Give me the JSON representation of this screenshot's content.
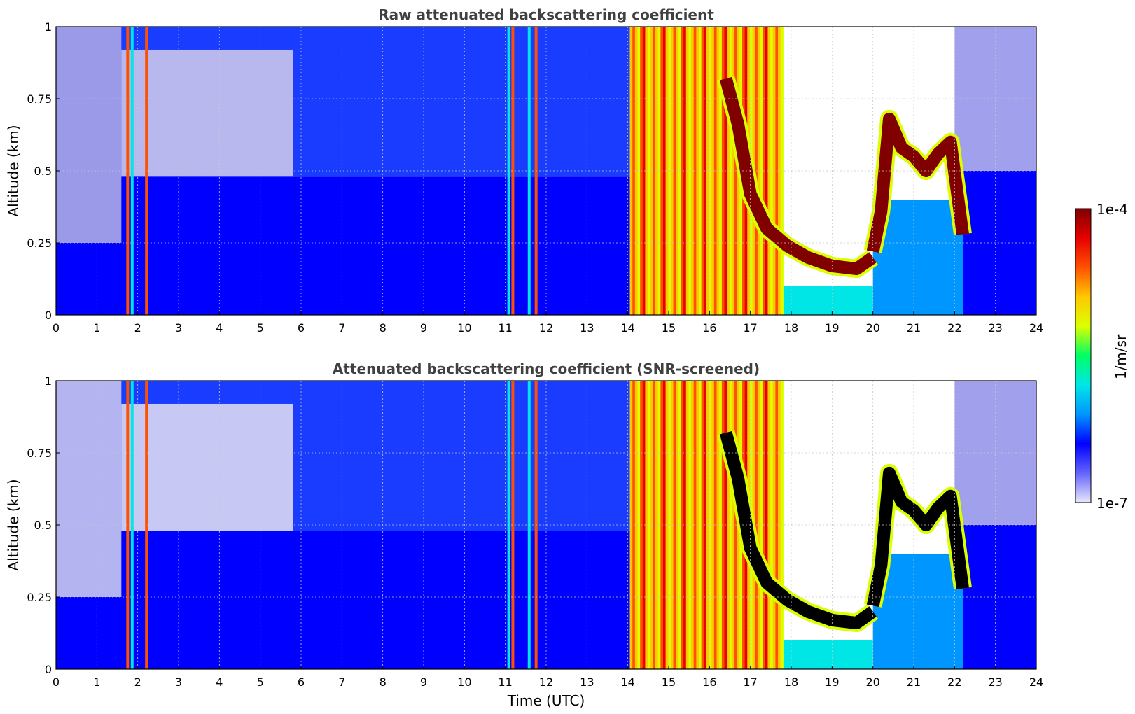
{
  "chart_data": [
    {
      "type": "heatmap",
      "title": "Raw attenuated backscattering coefficient",
      "xlabel": "",
      "ylabel": "Altitude (km)",
      "xlim": [
        0,
        24
      ],
      "ylim": [
        0,
        1
      ],
      "x_ticks": [
        "0",
        "1",
        "2",
        "3",
        "4",
        "5",
        "6",
        "7",
        "8",
        "9",
        "10",
        "11",
        "12",
        "13",
        "14",
        "15",
        "16",
        "17",
        "18",
        "19",
        "20",
        "21",
        "22",
        "23",
        "24"
      ],
      "y_ticks": [
        "0",
        "0.25",
        "0.5",
        "0.75",
        "1"
      ],
      "grid": true,
      "screened": false
    },
    {
      "type": "heatmap",
      "title": "Attenuated backscattering coefficient (SNR-screened)",
      "xlabel": "Time (UTC)",
      "ylabel": "Altitude (km)",
      "xlim": [
        0,
        24
      ],
      "ylim": [
        0,
        1
      ],
      "x_ticks": [
        "0",
        "1",
        "2",
        "3",
        "4",
        "5",
        "6",
        "7",
        "8",
        "9",
        "10",
        "11",
        "12",
        "13",
        "14",
        "15",
        "16",
        "17",
        "18",
        "19",
        "20",
        "21",
        "22",
        "23",
        "24"
      ],
      "y_ticks": [
        "0",
        "0.25",
        "0.5",
        "0.75",
        "1"
      ],
      "grid": true,
      "screened": true
    }
  ],
  "colorbar": {
    "label": "1/m/sr",
    "max_label": "1e-4",
    "min_label": "1e-7",
    "scale": "log",
    "colormap": [
      "#e8e8f8",
      "#6464ff",
      "#0000ff",
      "#0096ff",
      "#00e6e6",
      "#00ff64",
      "#dcff00",
      "#ffc800",
      "#ff5000",
      "#e60000",
      "#800000"
    ]
  },
  "features": {
    "cloud_base_segments": [
      {
        "t": [
          16.4,
          16.7,
          17.0,
          17.4,
          17.9,
          18.4,
          19.0,
          19.6,
          20.0
        ],
        "h": [
          0.82,
          0.66,
          0.42,
          0.3,
          0.24,
          0.2,
          0.17,
          0.16,
          0.2
        ]
      },
      {
        "t": [
          20.0,
          20.2,
          20.4,
          20.7,
          21.0,
          21.3,
          21.6,
          21.9,
          22.2
        ],
        "h": [
          0.22,
          0.36,
          0.68,
          0.58,
          0.55,
          0.5,
          0.56,
          0.6,
          0.28
        ]
      }
    ],
    "precip_blocks_t": [
      [
        14.05,
        17.8
      ]
    ],
    "vertical_streaks_t": [
      1.72,
      1.83,
      2.18,
      11.05,
      11.15,
      11.55,
      11.72
    ]
  }
}
